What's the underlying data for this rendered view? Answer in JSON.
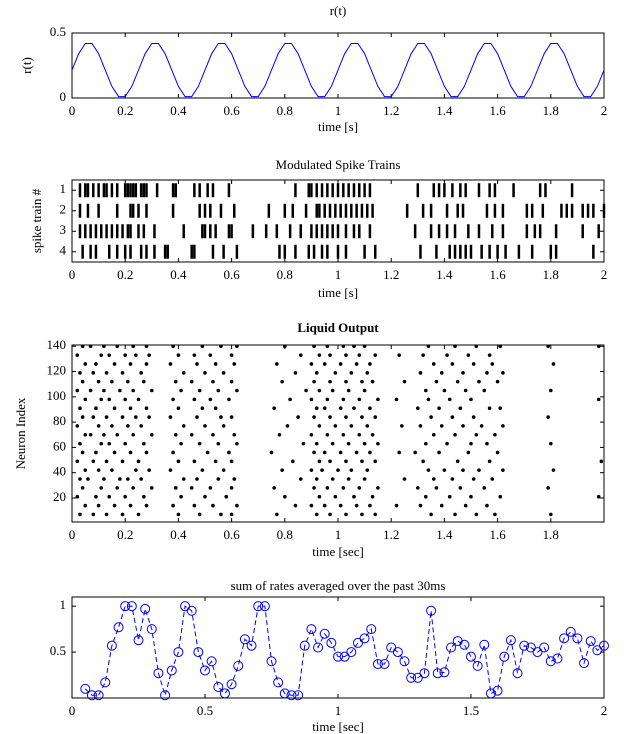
{
  "chart_data": [
    {
      "type": "line",
      "title": "r(t)",
      "xlabel": "time [s]",
      "ylabel": "r(t)",
      "color": "#0000ff",
      "linestyle": "-",
      "xlim": [
        0,
        2
      ],
      "ylim": [
        0,
        0.5
      ],
      "xticks": [
        0,
        0.2,
        0.4,
        0.6,
        0.8,
        1,
        1.2,
        1.4,
        1.6,
        1.8,
        2
      ],
      "yticks": [
        0,
        0.5
      ],
      "x": [
        0,
        0.025,
        0.05,
        0.075,
        0.1,
        0.125,
        0.15,
        0.175,
        0.2,
        0.225,
        0.25,
        0.275,
        0.3,
        0.325,
        0.35,
        0.375,
        0.4,
        0.425,
        0.45,
        0.475,
        0.5,
        0.525,
        0.55,
        0.575,
        0.6,
        0.625,
        0.65,
        0.675,
        0.7,
        0.725,
        0.75,
        0.775,
        0.8,
        0.825,
        0.85,
        0.875,
        0.9,
        0.925,
        0.95,
        0.975,
        1,
        1.025,
        1.05,
        1.075,
        1.1,
        1.125,
        1.15,
        1.175,
        1.2,
        1.225,
        1.25,
        1.275,
        1.3,
        1.325,
        1.35,
        1.375,
        1.4,
        1.425,
        1.45,
        1.475,
        1.5,
        1.525,
        1.55,
        1.575,
        1.6,
        1.625,
        1.65,
        1.675,
        1.7,
        1.725,
        1.75,
        1.775,
        1.8,
        1.825,
        1.85,
        1.875,
        1.9,
        1.925,
        1.95,
        1.975,
        2
      ],
      "values": [
        0.215,
        0.341,
        0.419,
        0.419,
        0.341,
        0.215,
        0.089,
        0.011,
        0.011,
        0.089,
        0.215,
        0.341,
        0.419,
        0.419,
        0.341,
        0.215,
        0.089,
        0.011,
        0.011,
        0.089,
        0.215,
        0.341,
        0.419,
        0.419,
        0.341,
        0.215,
        0.089,
        0.011,
        0.011,
        0.089,
        0.215,
        0.341,
        0.419,
        0.419,
        0.341,
        0.215,
        0.089,
        0.011,
        0.011,
        0.089,
        0.215,
        0.341,
        0.419,
        0.419,
        0.341,
        0.215,
        0.089,
        0.011,
        0.011,
        0.089,
        0.215,
        0.341,
        0.419,
        0.419,
        0.341,
        0.215,
        0.089,
        0.011,
        0.011,
        0.089,
        0.215,
        0.341,
        0.419,
        0.419,
        0.341,
        0.215,
        0.089,
        0.011,
        0.011,
        0.089,
        0.215,
        0.341,
        0.419,
        0.419,
        0.341,
        0.215,
        0.089,
        0.011,
        0.011,
        0.089,
        0.215
      ]
    },
    {
      "type": "raster",
      "title": "Modulated Spike Trains",
      "xlabel": "time [s]",
      "ylabel": "spike train #",
      "color": "#000000",
      "marker": "|",
      "xlim": [
        0,
        2
      ],
      "ylim": [
        4.5,
        0.5
      ],
      "xticks": [
        0,
        0.2,
        0.4,
        0.6,
        0.8,
        1,
        1.2,
        1.4,
        1.6,
        1.8,
        2
      ],
      "yticks": [
        1,
        2,
        3,
        4
      ],
      "series": [
        {
          "y": 1,
          "x": [
            0.03,
            0.05,
            0.06,
            0.08,
            0.1,
            0.12,
            0.13,
            0.15,
            0.17,
            0.2,
            0.21,
            0.22,
            0.23,
            0.24,
            0.26,
            0.27,
            0.28,
            0.32,
            0.38,
            0.39,
            0.46,
            0.48,
            0.51,
            0.53,
            0.59,
            0.84,
            0.89,
            0.9,
            0.92,
            0.94,
            0.96,
            0.98,
            1.0,
            1.02,
            1.04,
            1.06,
            1.08,
            1.1,
            1.12,
            1.3,
            1.36,
            1.38,
            1.4,
            1.43,
            1.46,
            1.48,
            1.53,
            1.57,
            1.59,
            1.66,
            1.76,
            1.78,
            1.88
          ]
        },
        {
          "y": 2,
          "x": [
            0.03,
            0.06,
            0.1,
            0.17,
            0.22,
            0.23,
            0.25,
            0.28,
            0.38,
            0.48,
            0.5,
            0.52,
            0.56,
            0.61,
            0.74,
            0.8,
            0.83,
            0.88,
            0.92,
            0.93,
            0.95,
            0.97,
            0.99,
            1.01,
            1.03,
            1.05,
            1.07,
            1.09,
            1.11,
            1.13,
            1.26,
            1.32,
            1.35,
            1.41,
            1.45,
            1.47,
            1.56,
            1.59,
            1.62,
            1.71,
            1.73,
            1.77,
            1.84,
            1.86,
            1.88,
            1.92,
            1.94,
            1.96,
            2.0
          ]
        },
        {
          "y": 3,
          "x": [
            0.03,
            0.05,
            0.07,
            0.09,
            0.11,
            0.13,
            0.15,
            0.17,
            0.19,
            0.21,
            0.22,
            0.25,
            0.27,
            0.31,
            0.42,
            0.49,
            0.5,
            0.52,
            0.54,
            0.59,
            0.6,
            0.68,
            0.73,
            0.77,
            0.82,
            0.86,
            0.9,
            0.92,
            0.94,
            0.96,
            0.98,
            1.0,
            1.03,
            1.06,
            1.08,
            1.12,
            1.29,
            1.35,
            1.38,
            1.41,
            1.44,
            1.49,
            1.53,
            1.58,
            1.62,
            1.71,
            1.74,
            1.76,
            1.82,
            1.92,
            1.98
          ]
        },
        {
          "y": 4,
          "x": [
            0.04,
            0.07,
            0.09,
            0.14,
            0.17,
            0.2,
            0.22,
            0.26,
            0.28,
            0.31,
            0.35,
            0.36,
            0.45,
            0.46,
            0.53,
            0.57,
            0.62,
            0.78,
            0.8,
            0.84,
            0.89,
            0.91,
            0.94,
            0.96,
            1.0,
            1.03,
            1.1,
            1.14,
            1.31,
            1.37,
            1.42,
            1.44,
            1.46,
            1.48,
            1.5,
            1.54,
            1.57,
            1.6,
            1.63,
            1.68,
            1.73,
            1.8,
            1.82,
            1.96
          ]
        }
      ]
    },
    {
      "type": "raster",
      "title": "Liquid Output",
      "title_weight": "bold",
      "xlabel": "time [sec]",
      "ylabel": "Neuron Index",
      "color": "#000000",
      "marker": ".",
      "xlim": [
        0,
        2
      ],
      "ylim": [
        1,
        141
      ],
      "xticks": [
        0,
        0.2,
        0.4,
        0.6,
        0.8,
        1,
        1.2,
        1.4,
        1.6,
        1.8
      ],
      "yticks": [
        20,
        40,
        60,
        80,
        100,
        120,
        140
      ],
      "series": [
        {
          "y": 7,
          "x": [
            0.03,
            0.08,
            0.13,
            0.19,
            0.25,
            0.4,
            0.48,
            0.56,
            0.6,
            0.77,
            0.92,
            0.97,
            1.03,
            1.09,
            1.14,
            1.35,
            1.44,
            1.52,
            1.59,
            1.8
          ]
        },
        {
          "y": 14,
          "x": [
            0.05,
            0.1,
            0.16,
            0.22,
            0.28,
            0.38,
            0.46,
            0.53,
            0.62,
            0.84,
            0.9,
            0.95,
            1.01,
            1.07,
            1.12,
            1.22,
            1.31,
            1.39,
            1.48,
            1.56
          ]
        },
        {
          "y": 21,
          "x": [
            0.02,
            0.09,
            0.14,
            0.2,
            0.27,
            0.41,
            0.5,
            0.58,
            0.8,
            0.93,
            0.99,
            1.06,
            1.13,
            1.33,
            1.42,
            1.5,
            1.61,
            1.98
          ]
        },
        {
          "y": 28,
          "x": [
            0.04,
            0.11,
            0.17,
            0.23,
            0.3,
            0.39,
            0.45,
            0.52,
            0.6,
            0.76,
            0.91,
            0.96,
            1.02,
            1.08,
            1.15,
            1.3,
            1.37,
            1.46,
            1.55,
            1.79
          ]
        },
        {
          "y": 35,
          "x": [
            0.03,
            0.06,
            0.12,
            0.18,
            0.21,
            0.26,
            0.42,
            0.47,
            0.55,
            0.61,
            0.86,
            0.92,
            0.98,
            1.04,
            1.1,
            1.25,
            1.36,
            1.43,
            1.51,
            1.58
          ]
        },
        {
          "y": 42,
          "x": [
            0.05,
            0.1,
            0.15,
            0.24,
            0.29,
            0.37,
            0.49,
            0.57,
            0.79,
            0.9,
            0.94,
            1.0,
            1.05,
            1.11,
            1.34,
            1.4,
            1.47,
            1.53,
            1.62,
            1.81
          ]
        },
        {
          "y": 49,
          "x": [
            0.02,
            0.08,
            0.13,
            0.19,
            0.25,
            0.4,
            0.46,
            0.54,
            0.6,
            0.83,
            0.93,
            0.97,
            1.03,
            1.09,
            1.14,
            1.32,
            1.45,
            1.57,
            1.99
          ]
        },
        {
          "y": 56,
          "x": [
            0.04,
            0.09,
            0.16,
            0.22,
            0.28,
            0.38,
            0.51,
            0.59,
            0.75,
            0.91,
            0.95,
            1.01,
            1.07,
            1.12,
            1.23,
            1.29,
            1.38,
            1.49,
            1.6
          ]
        },
        {
          "y": 63,
          "x": [
            0.03,
            0.11,
            0.14,
            0.2,
            0.27,
            0.41,
            0.48,
            0.55,
            0.62,
            0.87,
            0.92,
            0.98,
            1.04,
            1.1,
            1.15,
            1.33,
            1.41,
            1.5,
            1.56,
            1.8
          ]
        },
        {
          "y": 70,
          "x": [
            0.05,
            0.07,
            0.12,
            0.17,
            0.23,
            0.3,
            0.39,
            0.45,
            0.53,
            0.61,
            0.78,
            0.9,
            0.96,
            1.02,
            1.08,
            1.13,
            1.36,
            1.44,
            1.52,
            1.59
          ]
        },
        {
          "y": 77,
          "x": [
            0.02,
            0.1,
            0.15,
            0.21,
            0.26,
            0.42,
            0.5,
            0.57,
            0.81,
            0.93,
            0.99,
            1.05,
            1.11,
            1.24,
            1.31,
            1.39,
            1.47,
            1.54,
            1.62
          ]
        },
        {
          "y": 84,
          "x": [
            0.04,
            0.08,
            0.13,
            0.19,
            0.24,
            0.29,
            0.37,
            0.47,
            0.56,
            0.6,
            0.85,
            0.91,
            0.97,
            1.03,
            1.09,
            1.14,
            1.35,
            1.43,
            1.51,
            1.79
          ]
        },
        {
          "y": 91,
          "x": [
            0.03,
            0.09,
            0.16,
            0.22,
            0.28,
            0.4,
            0.49,
            0.54,
            0.76,
            0.92,
            0.95,
            1.01,
            1.06,
            1.12,
            1.3,
            1.38,
            1.46,
            1.57,
            1.61
          ]
        },
        {
          "y": 98,
          "x": [
            0.05,
            0.11,
            0.14,
            0.2,
            0.25,
            0.38,
            0.46,
            0.52,
            0.59,
            0.82,
            0.9,
            0.96,
            1.02,
            1.08,
            1.15,
            1.22,
            1.34,
            1.42,
            1.5,
            1.98
          ]
        },
        {
          "y": 105,
          "x": [
            0.02,
            0.07,
            0.12,
            0.18,
            0.23,
            0.3,
            0.41,
            0.48,
            0.55,
            0.62,
            0.88,
            0.93,
            0.98,
            1.04,
            1.1,
            1.33,
            1.4,
            1.48,
            1.55,
            1.8
          ]
        },
        {
          "y": 112,
          "x": [
            0.04,
            0.1,
            0.15,
            0.21,
            0.27,
            0.39,
            0.45,
            0.53,
            0.6,
            0.79,
            0.91,
            0.97,
            1.03,
            1.09,
            1.13,
            1.25,
            1.37,
            1.45,
            1.53,
            1.6
          ]
        },
        {
          "y": 119,
          "x": [
            0.03,
            0.08,
            0.13,
            0.19,
            0.26,
            0.42,
            0.5,
            0.57,
            0.84,
            0.92,
            0.99,
            1.05,
            1.11,
            1.31,
            1.39,
            1.47,
            1.56,
            1.62
          ]
        },
        {
          "y": 126,
          "x": [
            0.05,
            0.09,
            0.16,
            0.22,
            0.28,
            0.37,
            0.47,
            0.54,
            0.61,
            0.77,
            0.9,
            0.95,
            1.01,
            1.07,
            1.12,
            1.36,
            1.43,
            1.51,
            1.58,
            1.81
          ]
        },
        {
          "y": 133,
          "x": [
            0.02,
            0.11,
            0.14,
            0.2,
            0.24,
            0.29,
            0.4,
            0.46,
            0.52,
            0.6,
            0.86,
            0.93,
            0.97,
            1.03,
            1.08,
            1.14,
            1.23,
            1.32,
            1.41,
            1.49,
            1.57
          ]
        },
        {
          "y": 140,
          "x": [
            0.04,
            0.07,
            0.12,
            0.17,
            0.23,
            0.28,
            0.38,
            0.49,
            0.56,
            0.62,
            0.8,
            0.91,
            0.96,
            1.02,
            1.06,
            1.1,
            1.34,
            1.44,
            1.52,
            1.61,
            1.79,
            1.98
          ]
        }
      ]
    },
    {
      "type": "line",
      "title": "sum of rates averaged over the past 30ms",
      "xlabel": "time [sec]",
      "color": "#0000ff",
      "linestyle": "--",
      "marker": "o",
      "xlim": [
        0,
        2
      ],
      "ylim": [
        0,
        1.1
      ],
      "xticks": [
        0,
        0.5,
        1,
        1.5,
        2
      ],
      "yticks": [
        0.5,
        1
      ],
      "x": [
        0.05,
        0.075,
        0.1,
        0.125,
        0.15,
        0.175,
        0.2,
        0.225,
        0.25,
        0.275,
        0.3,
        0.325,
        0.35,
        0.375,
        0.4,
        0.425,
        0.45,
        0.475,
        0.5,
        0.525,
        0.55,
        0.575,
        0.6,
        0.625,
        0.65,
        0.675,
        0.7,
        0.725,
        0.75,
        0.775,
        0.8,
        0.825,
        0.85,
        0.875,
        0.9,
        0.925,
        0.95,
        0.975,
        1,
        1.025,
        1.05,
        1.075,
        1.1,
        1.125,
        1.15,
        1.175,
        1.2,
        1.225,
        1.25,
        1.275,
        1.3,
        1.325,
        1.35,
        1.375,
        1.4,
        1.425,
        1.45,
        1.475,
        1.5,
        1.525,
        1.55,
        1.575,
        1.6,
        1.625,
        1.65,
        1.675,
        1.7,
        1.725,
        1.75,
        1.775,
        1.8,
        1.825,
        1.85,
        1.875,
        1.9,
        1.925,
        1.95,
        1.975,
        2
      ],
      "values": [
        0.1,
        0.03,
        0.03,
        0.17,
        0.57,
        0.77,
        1.0,
        1.0,
        0.63,
        0.97,
        0.75,
        0.27,
        0.03,
        0.3,
        0.5,
        1.0,
        0.95,
        0.5,
        0.3,
        0.4,
        0.12,
        0.05,
        0.15,
        0.35,
        0.64,
        0.57,
        1.0,
        1.0,
        0.4,
        0.17,
        0.05,
        0.03,
        0.03,
        0.57,
        0.75,
        0.55,
        0.7,
        0.6,
        0.45,
        0.45,
        0.5,
        0.6,
        0.65,
        0.75,
        0.37,
        0.37,
        0.55,
        0.5,
        0.4,
        0.22,
        0.22,
        0.27,
        0.95,
        0.27,
        0.28,
        0.55,
        0.62,
        0.58,
        0.45,
        0.35,
        0.58,
        0.05,
        0.08,
        0.45,
        0.63,
        0.27,
        0.57,
        0.55,
        0.5,
        0.55,
        0.4,
        0.43,
        0.65,
        0.72,
        0.65,
        0.38,
        0.62,
        0.52,
        0.57
      ]
    }
  ]
}
